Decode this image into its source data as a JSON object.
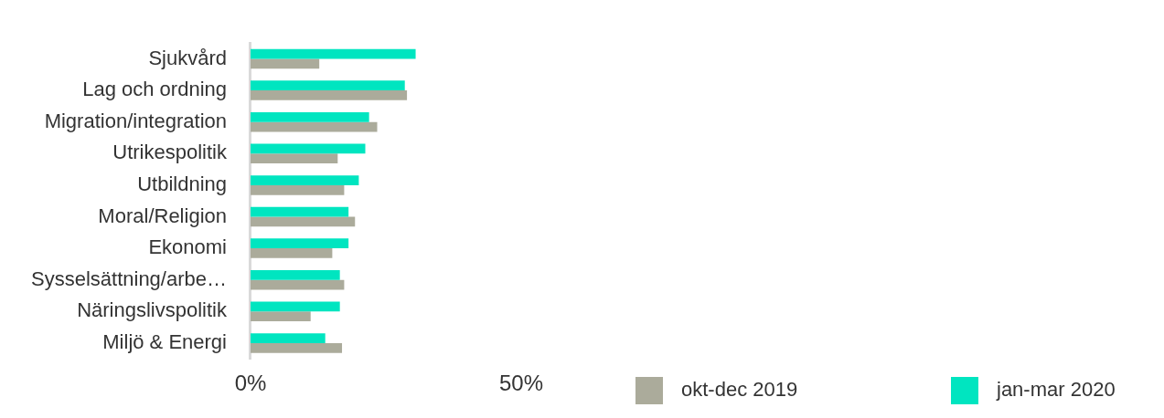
{
  "chart_data": {
    "type": "bar",
    "orientation": "horizontal",
    "categories": [
      "Sjukvård",
      "Lag och ordning",
      "Migration/integration",
      "Utrikespolitik",
      "Utbildning",
      "Moral/Religion",
      "Ekonomi",
      "Sysselsättning/arbe…",
      "Näringslivspolitik",
      "Miljö & Energi"
    ],
    "series": [
      {
        "name": "okt-dec 2019",
        "color": "#abab9b",
        "values": [
          12.7,
          28.9,
          23.4,
          16.1,
          17.3,
          19.3,
          15.1,
          17.3,
          11.1,
          16.9
        ]
      },
      {
        "name": "jan-mar 2020",
        "color": "#00e5c0",
        "values": [
          30.5,
          28.5,
          21.9,
          21.2,
          20.0,
          18.1,
          18.1,
          16.5,
          16.5,
          13.8
        ]
      }
    ],
    "xlim": [
      0,
      50
    ],
    "xticks": [
      {
        "value": 0,
        "label": "0%"
      },
      {
        "value": 50,
        "label": "50%"
      }
    ],
    "grid": false,
    "legend": "bottom right"
  }
}
